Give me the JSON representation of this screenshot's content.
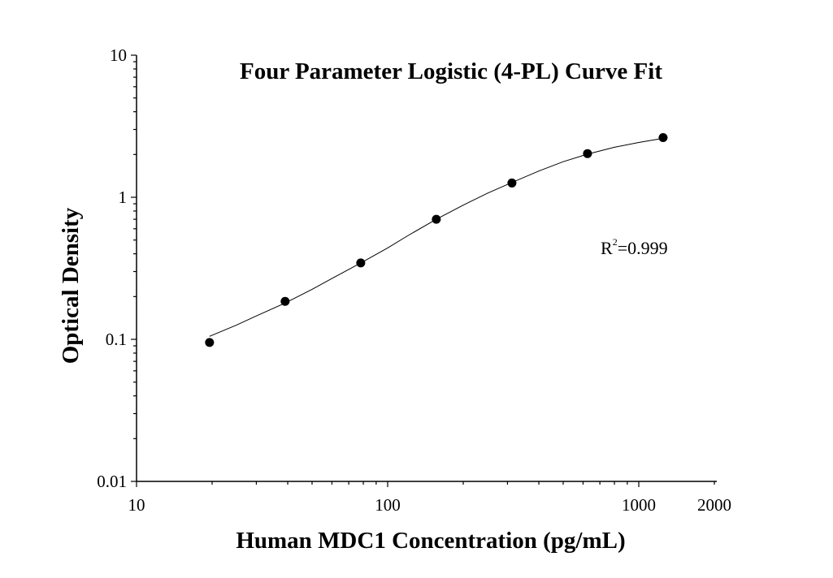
{
  "chart_data": {
    "type": "scatter",
    "title": "Four Parameter Logistic (4-PL) Curve Fit",
    "xlabel": "Human MDC1 Concentration (pg/mL)",
    "ylabel": "Optical Density",
    "xscale": "log",
    "yscale": "log",
    "xlim": [
      10,
      2000
    ],
    "ylim": [
      0.01,
      10
    ],
    "xticks": [
      {
        "value": 10,
        "label": "10"
      },
      {
        "value": 100,
        "label": "100"
      },
      {
        "value": 1000,
        "label": "1000"
      },
      {
        "value": 2000,
        "label": "2000"
      }
    ],
    "yticks": [
      {
        "value": 0.01,
        "label": "0.01"
      },
      {
        "value": 0.1,
        "label": "0.1"
      },
      {
        "value": 1,
        "label": "1"
      },
      {
        "value": 10,
        "label": "10"
      }
    ],
    "grid": false,
    "series": [
      {
        "points": [
          {
            "x": 19.53,
            "y": 0.095
          },
          {
            "x": 39.06,
            "y": 0.185
          },
          {
            "x": 78.13,
            "y": 0.345
          },
          {
            "x": 156.25,
            "y": 0.7
          },
          {
            "x": 312.5,
            "y": 1.26
          },
          {
            "x": 625,
            "y": 2.03
          },
          {
            "x": 1250,
            "y": 2.63
          }
        ]
      }
    ],
    "fit_curve": [
      {
        "x": 19.53,
        "y": 0.105
      },
      {
        "x": 25,
        "y": 0.126
      },
      {
        "x": 30,
        "y": 0.146
      },
      {
        "x": 39.06,
        "y": 0.18
      },
      {
        "x": 50,
        "y": 0.225
      },
      {
        "x": 60,
        "y": 0.268
      },
      {
        "x": 78.13,
        "y": 0.345
      },
      {
        "x": 100,
        "y": 0.44
      },
      {
        "x": 120,
        "y": 0.535
      },
      {
        "x": 156.25,
        "y": 0.7
      },
      {
        "x": 200,
        "y": 0.88
      },
      {
        "x": 250,
        "y": 1.07
      },
      {
        "x": 312.5,
        "y": 1.27
      },
      {
        "x": 400,
        "y": 1.53
      },
      {
        "x": 500,
        "y": 1.78
      },
      {
        "x": 625,
        "y": 2.01
      },
      {
        "x": 800,
        "y": 2.25
      },
      {
        "x": 1000,
        "y": 2.43
      },
      {
        "x": 1250,
        "y": 2.6
      }
    ],
    "annotation": {
      "base": "R",
      "sup": "2",
      "rest": "=0.999"
    }
  }
}
